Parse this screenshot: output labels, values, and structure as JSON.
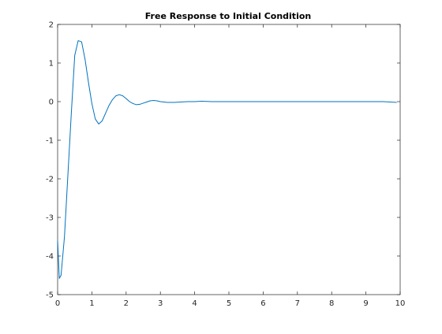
{
  "chart_data": {
    "type": "line",
    "title": "Free Response to Initial Condition",
    "xlabel": "",
    "ylabel": "",
    "xlim": [
      0,
      10
    ],
    "ylim": [
      -5,
      2
    ],
    "xticks": [
      "0",
      "1",
      "2",
      "3",
      "4",
      "5",
      "6",
      "7",
      "8",
      "9",
      "10"
    ],
    "yticks": [
      "-5",
      "-4",
      "-3",
      "-2",
      "-1",
      "0",
      "1",
      "2"
    ],
    "grid": false,
    "legend": "none",
    "series_color": "#0072BD",
    "series": [
      {
        "x": [
          0,
          0.05,
          0.1,
          0.2,
          0.3,
          0.4,
          0.5,
          0.6,
          0.7,
          0.8,
          0.9,
          1.0,
          1.1,
          1.2,
          1.3,
          1.4,
          1.5,
          1.6,
          1.7,
          1.8,
          1.9,
          2.0,
          2.1,
          2.2,
          2.3,
          2.4,
          2.5,
          2.6,
          2.7,
          2.8,
          2.9,
          3.0,
          3.2,
          3.4,
          3.6,
          3.8,
          4.0,
          4.2,
          4.5,
          5.0,
          5.5,
          6.0,
          6.5,
          7.0,
          7.5,
          8.0,
          8.5,
          9.0,
          9.5,
          9.9
        ],
        "y": [
          -3.6,
          -4.58,
          -4.5,
          -3.5,
          -1.9,
          -0.3,
          1.2,
          1.58,
          1.55,
          1.1,
          0.5,
          -0.05,
          -0.45,
          -0.58,
          -0.5,
          -0.3,
          -0.1,
          0.05,
          0.15,
          0.18,
          0.15,
          0.08,
          0.0,
          -0.05,
          -0.08,
          -0.07,
          -0.04,
          -0.01,
          0.02,
          0.03,
          0.02,
          0.0,
          -0.02,
          -0.02,
          -0.01,
          0.0,
          0.0,
          0.01,
          0.0,
          0.0,
          0.0,
          0.0,
          0.0,
          0.0,
          0.0,
          0.0,
          0.0,
          0.0,
          0.0,
          -0.02
        ]
      }
    ]
  }
}
